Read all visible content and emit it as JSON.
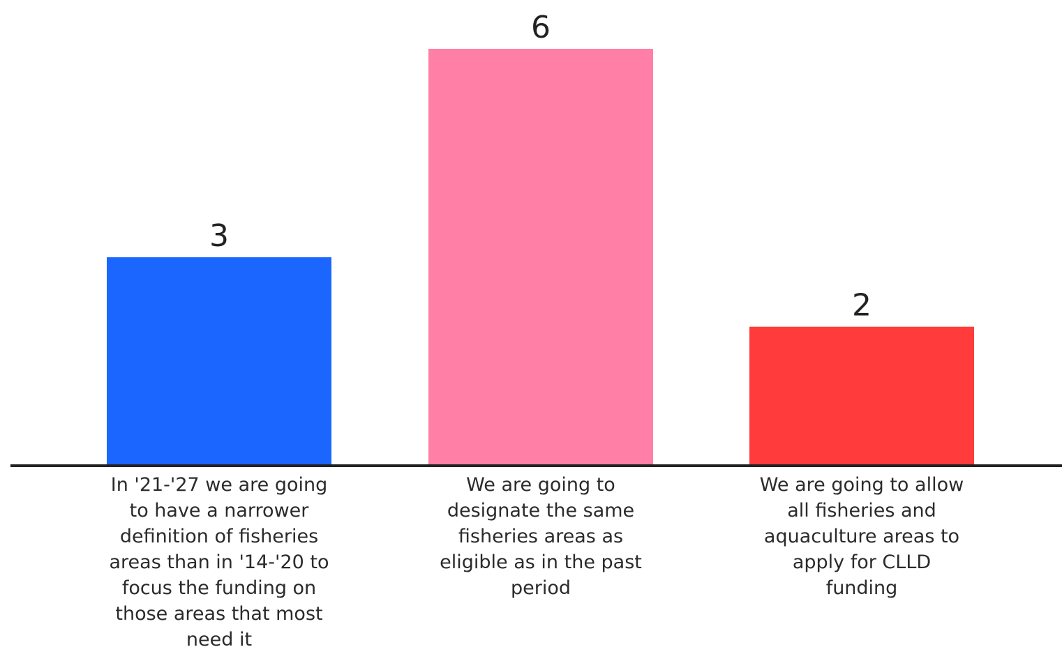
{
  "chart_data": {
    "type": "bar",
    "categories": [
      [
        "In '21-'27 we are going",
        "to have a narrower",
        "definition of fisheries",
        "areas than in '14-'20 to",
        "focus the funding on",
        "those areas that most",
        "need it"
      ],
      [
        "We are going to",
        "designate the same",
        "fisheries areas as",
        "eligible as in the past",
        "period"
      ],
      [
        "We are going to allow",
        "all fisheries and",
        "aquaculture areas to",
        "apply for CLLD",
        "funding"
      ]
    ],
    "values": [
      3,
      6,
      2
    ],
    "colors": [
      "#1a66ff",
      "#ff7fa6",
      "#ff3b3b"
    ],
    "ylim": [
      0,
      6
    ],
    "title": "",
    "xlabel": "",
    "ylabel": "",
    "grid": false,
    "legend": "none",
    "axis_color": "#222222"
  }
}
